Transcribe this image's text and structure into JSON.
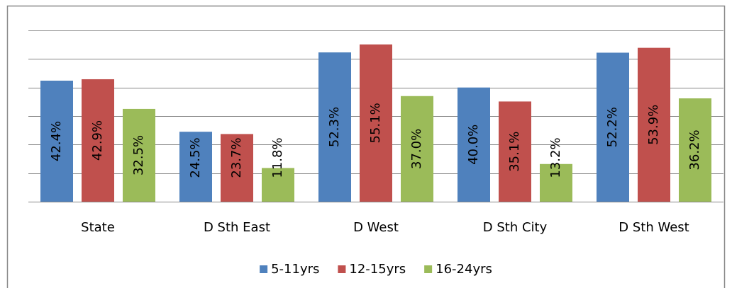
{
  "chart_data": {
    "type": "bar",
    "categories": [
      "State",
      "D Sth East",
      "D West",
      "D Sth City",
      "D Sth West"
    ],
    "series": [
      {
        "name": "5-11yrs",
        "color": "#4f81bd",
        "values": [
          42.4,
          24.5,
          52.3,
          40.0,
          52.2
        ],
        "value_labels": [
          "42.4%",
          "24.5%",
          "52.3%",
          "40.0%",
          "52.2%"
        ]
      },
      {
        "name": "12-15yrs",
        "color": "#c0504d",
        "values": [
          42.9,
          23.7,
          55.1,
          35.1,
          53.9
        ],
        "value_labels": [
          "42.9%",
          "23.7%",
          "55.1%",
          "35.1%",
          "53.9%"
        ]
      },
      {
        "name": "16-24yrs",
        "color": "#9bbb59",
        "values": [
          32.5,
          11.8,
          37.0,
          13.2,
          36.2
        ],
        "value_labels": [
          "32.5%",
          "11.8%",
          "37.0%",
          "13.2%",
          "36.2%"
        ]
      }
    ],
    "ylim": [
      0,
      60
    ],
    "yticks": [
      0,
      10,
      20,
      30,
      40,
      50,
      60
    ],
    "grid": true,
    "legend": "bottom"
  }
}
